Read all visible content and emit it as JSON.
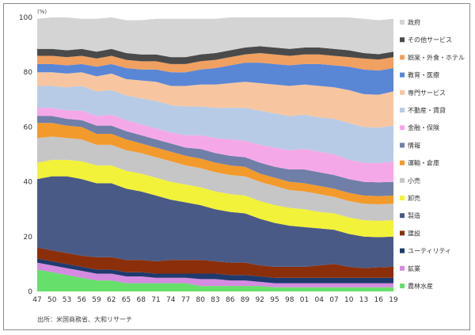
{
  "chart_data": {
    "type": "area",
    "stacked": true,
    "unit_label": "(%)",
    "ylim": [
      0,
      100
    ],
    "y_ticks": [
      0,
      20,
      40,
      60,
      80,
      100
    ],
    "x_ticks": [
      "47",
      "50",
      "53",
      "56",
      "59",
      "62",
      "65",
      "68",
      "71",
      "74",
      "77",
      "80",
      "83",
      "86",
      "89",
      "92",
      "95",
      "98",
      "01",
      "04",
      "07",
      "10",
      "13",
      "16",
      "19"
    ],
    "x": [
      1947,
      1950,
      1953,
      1956,
      1959,
      1962,
      1965,
      1968,
      1971,
      1974,
      1977,
      1980,
      1983,
      1986,
      1989,
      1992,
      1995,
      1998,
      2001,
      2004,
      2007,
      2010,
      2013,
      2016,
      2019
    ],
    "legend_position": "right",
    "series": [
      {
        "name": "農林水産",
        "color": "#66e06a",
        "values": [
          8,
          7,
          6,
          5,
          4,
          4,
          3,
          3,
          3,
          3,
          3,
          2,
          2,
          2,
          2,
          2,
          1.5,
          1.5,
          1.5,
          1.5,
          1.5,
          1.5,
          1.5,
          1.5,
          1.5
        ]
      },
      {
        "name": "鉱業",
        "color": "#d48be0",
        "values": [
          2.5,
          2.5,
          2.5,
          2.5,
          2.5,
          2.5,
          2.5,
          2.5,
          2,
          2,
          2,
          2.5,
          2.5,
          2,
          2,
          1.5,
          1.5,
          1.5,
          1.5,
          1.5,
          1.5,
          1.5,
          1.5,
          1.5,
          1.5
        ]
      },
      {
        "name": "ユーティリティ",
        "color": "#1f3a6e",
        "values": [
          1.5,
          1.5,
          1.5,
          1.5,
          1.5,
          1.5,
          1.5,
          1.5,
          1.5,
          1.5,
          1.5,
          2,
          2,
          2,
          2,
          2,
          2,
          2,
          2,
          2,
          2,
          2,
          2,
          2,
          2
        ]
      },
      {
        "name": "建設",
        "color": "#8b2e0a",
        "values": [
          4,
          4,
          4,
          4,
          4.5,
          4.5,
          4.5,
          4.5,
          4.5,
          5,
          5,
          5,
          4.5,
          4.5,
          4.5,
          4,
          4,
          4,
          4,
          4.5,
          5,
          4,
          3.5,
          3.8,
          4
        ]
      },
      {
        "name": "製造",
        "color": "#4a5a86",
        "values": [
          25,
          27,
          28,
          28,
          27,
          27,
          26,
          25,
          24,
          22,
          21,
          20,
          19,
          18.5,
          18,
          17,
          16,
          15,
          14.5,
          13.5,
          12.5,
          12,
          11.5,
          11,
          11
        ]
      },
      {
        "name": "卸売",
        "color": "#f2f23a",
        "values": [
          6,
          6,
          6,
          6.5,
          6.5,
          6.5,
          6.5,
          6.5,
          6.5,
          6.5,
          6.5,
          6.5,
          6.5,
          6.5,
          6.5,
          6.5,
          6.5,
          6.5,
          6.5,
          6,
          6,
          6,
          6,
          6,
          6
        ]
      },
      {
        "name": "小売",
        "color": "#c6c6c6",
        "values": [
          9,
          8.5,
          8,
          8,
          7.5,
          7.5,
          7.5,
          7.5,
          7.5,
          7.5,
          7,
          7,
          7,
          7,
          7,
          7,
          7,
          6.5,
          6.5,
          6.5,
          6,
          6,
          6,
          6,
          6
        ]
      },
      {
        "name": "運輸・倉庫",
        "color": "#f39a2c",
        "values": [
          5.5,
          5,
          4.5,
          4.5,
          4,
          4,
          4,
          3.5,
          3.5,
          3.5,
          3.5,
          3.5,
          3.5,
          3.5,
          3.5,
          3,
          3,
          3,
          3,
          3,
          3,
          3,
          3,
          3,
          3
        ]
      },
      {
        "name": "情報",
        "color": "#6f7fa8",
        "values": [
          2.5,
          2.5,
          2.5,
          2.5,
          3,
          3,
          3,
          3,
          3,
          3,
          3,
          3.5,
          3.5,
          3.5,
          3.5,
          4,
          4,
          4.5,
          5,
          5,
          5,
          5,
          5,
          5,
          5
        ]
      },
      {
        "name": "金融・保険",
        "color": "#f5a8e8",
        "values": [
          3,
          3,
          3,
          3.5,
          3.5,
          4,
          4,
          4,
          4,
          4,
          4.5,
          5,
          5.5,
          6,
          6,
          6.5,
          7,
          7,
          7.5,
          7.5,
          7.5,
          7,
          7,
          7,
          7.5
        ]
      },
      {
        "name": "不動産・賃貸",
        "color": "#b8cbe6",
        "values": [
          8,
          8,
          8.5,
          9,
          9,
          9,
          9,
          9.5,
          10,
          10,
          10.5,
          10.5,
          11,
          11.5,
          12,
          12.5,
          12.5,
          12.5,
          12.5,
          12.5,
          13,
          13.5,
          13,
          13,
          13
        ]
      },
      {
        "name": "専門サービス",
        "color": "#f7c6a0",
        "values": [
          5,
          5,
          5,
          5,
          5.5,
          6,
          6,
          6.5,
          7,
          7,
          7.5,
          8,
          8.5,
          9,
          9.5,
          10,
          10.5,
          11,
          11,
          11.5,
          11.5,
          12,
          12,
          12,
          12.5
        ]
      },
      {
        "name": "教育・医療",
        "color": "#5a86d6",
        "values": [
          3,
          3,
          3,
          3,
          3.5,
          3.5,
          4,
          4,
          4.5,
          5,
          5,
          5.5,
          6,
          6.5,
          7,
          7.5,
          7.5,
          7.5,
          7.5,
          8,
          8,
          8.5,
          9,
          8.8,
          8.5
        ]
      },
      {
        "name": "娯楽・外食・ホテル",
        "color": "#f0a060",
        "values": [
          3,
          3,
          3,
          3,
          3,
          3,
          3,
          3,
          3,
          3,
          3,
          3,
          3,
          3,
          3,
          3.5,
          3.5,
          3.5,
          3.5,
          3.5,
          3.5,
          3.5,
          4,
          4,
          4
        ]
      },
      {
        "name": "その他サービス",
        "color": "#4a4a4a",
        "values": [
          2.5,
          2.5,
          2.5,
          2.5,
          2.5,
          2.5,
          2.5,
          2.5,
          2.5,
          2.5,
          2.5,
          2.5,
          2.5,
          2.5,
          2.5,
          2.5,
          2.5,
          2.5,
          2.5,
          2.5,
          2.5,
          2.5,
          2,
          2,
          2
        ]
      },
      {
        "name": "政府",
        "color": "#d4d4d4",
        "values": [
          11,
          11.5,
          12,
          11,
          12,
          11.5,
          12,
          12.5,
          13,
          14,
          14,
          13,
          12.5,
          12.5,
          12.5,
          12.5,
          12,
          12,
          11.5,
          11.5,
          11.5,
          12,
          12.5,
          12.4,
          12
        ]
      }
    ],
    "source": "出所：米国商務省、大和リサーチ"
  }
}
